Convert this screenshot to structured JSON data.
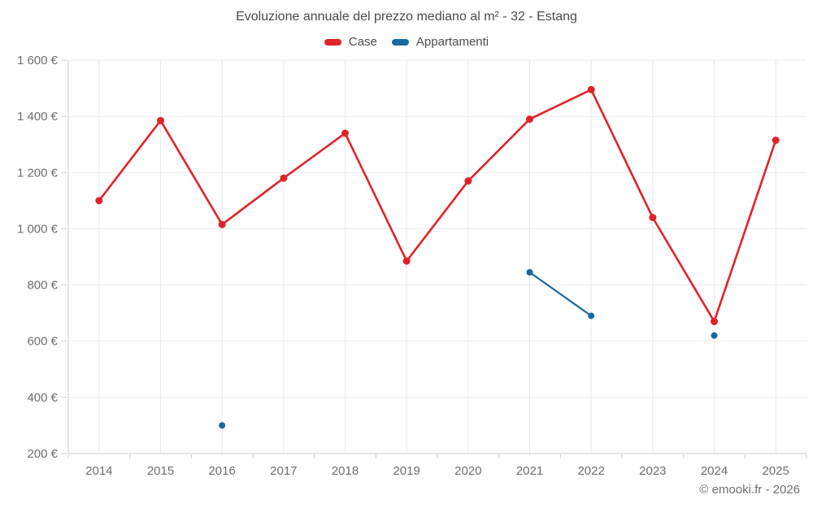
{
  "chart_data": {
    "type": "line",
    "title": "Evoluzione annuale del prezzo mediano al m² - 32 - Estang",
    "categories": [
      "2014",
      "2015",
      "2016",
      "2017",
      "2018",
      "2019",
      "2020",
      "2021",
      "2022",
      "2023",
      "2024",
      "2025"
    ],
    "series": [
      {
        "name": "Case",
        "color": "#e02329",
        "line_width": 2.6,
        "marker_radius": 4.5,
        "values": [
          1100,
          1385,
          1015,
          1180,
          1340,
          885,
          1170,
          1390,
          1495,
          1040,
          670,
          1315
        ]
      },
      {
        "name": "Appartamenti",
        "color": "#17699f",
        "line_width": 2.2,
        "marker_radius": 4,
        "values": [
          null,
          null,
          300,
          null,
          null,
          null,
          null,
          845,
          690,
          null,
          620,
          null
        ]
      }
    ],
    "ylim": [
      200,
      1600
    ],
    "ytick_values": [
      200,
      400,
      600,
      800,
      1000,
      1200,
      1400,
      1600
    ],
    "ytick_labels": [
      "200 €",
      "400 €",
      "600 €",
      "800 €",
      "1 000 €",
      "1 200 €",
      "1 400 €",
      "1 600 €"
    ],
    "grid": true,
    "legend_position": "top",
    "colors": {
      "grid": "#e9e9e9",
      "axis": "#cccccc",
      "tick_text": "#6e6e6e",
      "title_text": "#4a4a4a"
    }
  },
  "footer": {
    "copyright": "© emooki.fr - 2026"
  }
}
